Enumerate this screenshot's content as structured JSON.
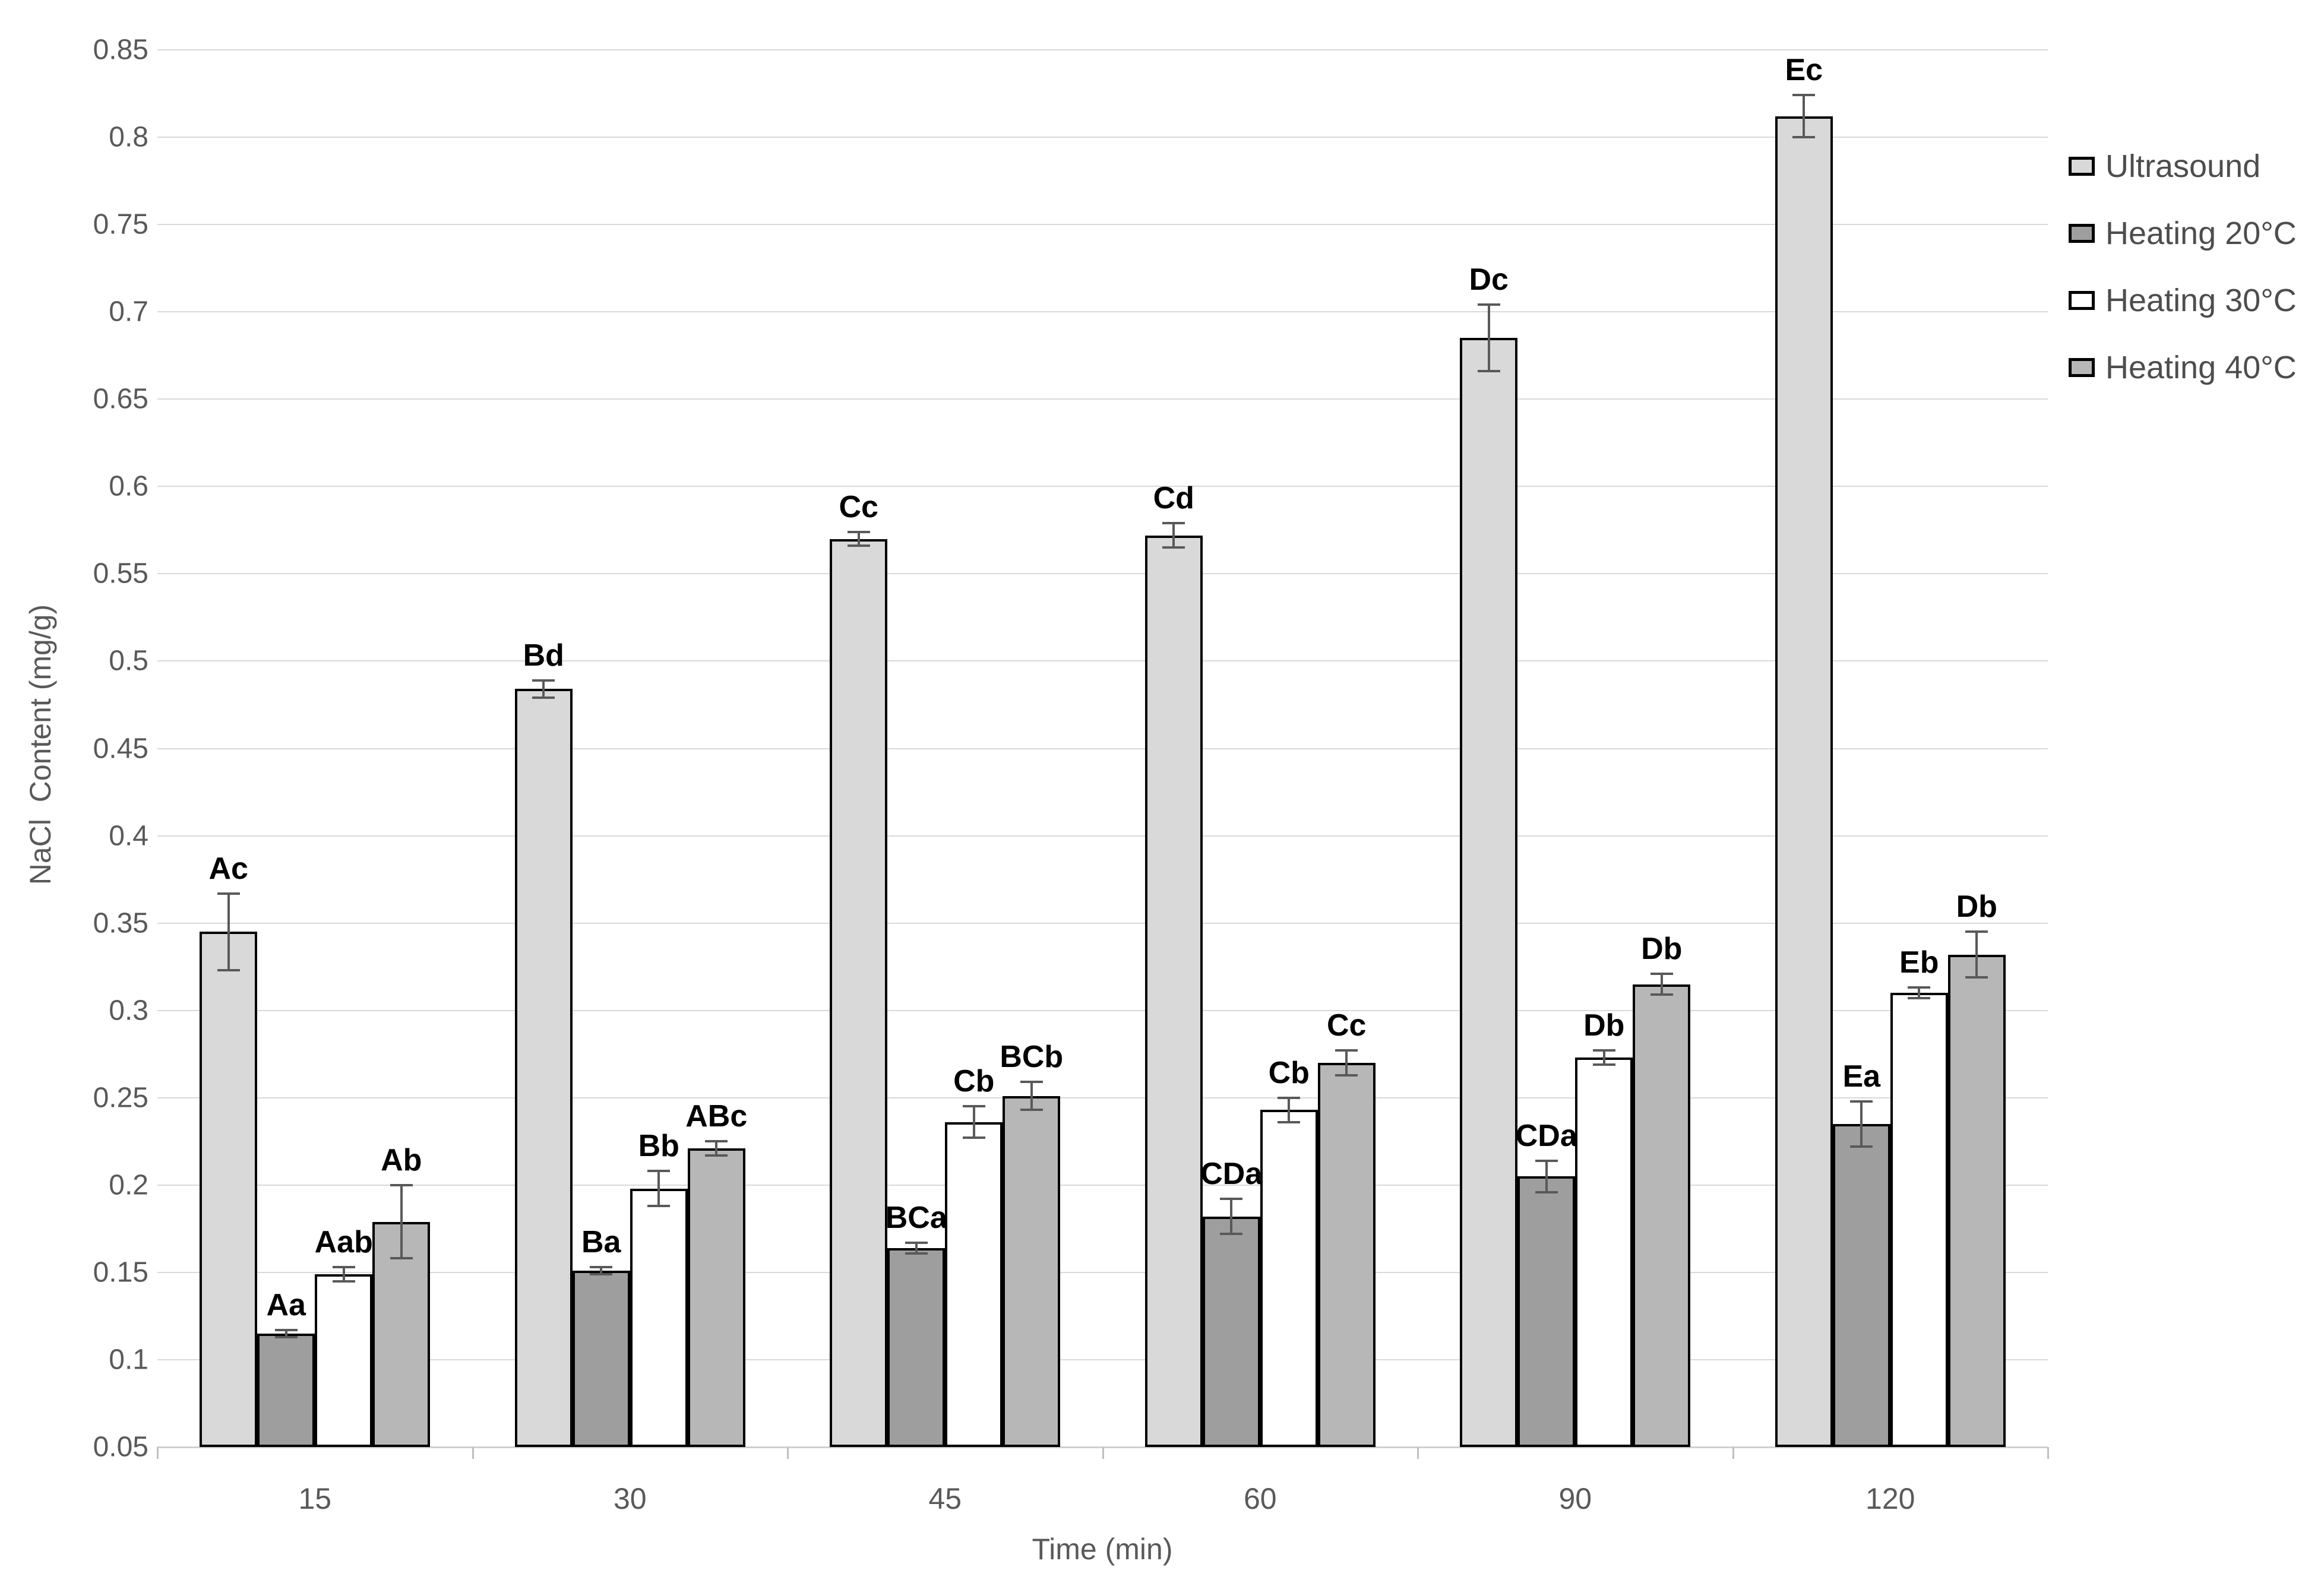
{
  "chart_data": {
    "type": "bar",
    "title": "",
    "xlabel": "Time (min)",
    "ylabel": "NaCl  Content (mg/g)",
    "categories": [
      "15",
      "30",
      "45",
      "60",
      "90",
      "120"
    ],
    "y_axis": {
      "min": 0.05,
      "max": 0.85,
      "step": 0.05,
      "tick_labels": [
        "0.85",
        "0.8",
        "0.75",
        "0.7",
        "0.65",
        "0.6",
        "0.55",
        "0.5",
        "0.45",
        "0.4",
        "0.35",
        "0.3",
        "0.25",
        "0.2",
        "0.15",
        "0.1",
        "0.05"
      ]
    },
    "grid": true,
    "legend_position": "right",
    "series": [
      {
        "name": "Ultrasound",
        "color": "#d9d9d9",
        "values": [
          0.345,
          0.484,
          0.57,
          0.572,
          0.685,
          0.812
        ],
        "errors": [
          0.022,
          0.005,
          0.004,
          0.007,
          0.019,
          0.012
        ],
        "point_labels": [
          "Ac",
          "Bd",
          "Cc",
          "Cd",
          "Dc",
          "Ec"
        ]
      },
      {
        "name": "Heating 20°C",
        "color": "#9e9e9e",
        "values": [
          0.115,
          0.151,
          0.164,
          0.182,
          0.205,
          0.235
        ],
        "errors": [
          0.002,
          0.002,
          0.003,
          0.01,
          0.009,
          0.013
        ],
        "point_labels": [
          "Aa",
          "Ba",
          "BCa",
          "CDa",
          "CDa",
          "Ea"
        ]
      },
      {
        "name": "Heating 30°C",
        "color": "#ffffff",
        "values": [
          0.149,
          0.198,
          0.236,
          0.243,
          0.273,
          0.31
        ],
        "errors": [
          0.004,
          0.01,
          0.009,
          0.007,
          0.004,
          0.003
        ],
        "point_labels": [
          "Aab",
          "Bb",
          "Cb",
          "Cb",
          "Db",
          "Eb"
        ]
      },
      {
        "name": "Heating 40°C",
        "color": "#b7b7b7",
        "values": [
          0.179,
          0.221,
          0.251,
          0.27,
          0.315,
          0.332
        ],
        "errors": [
          0.021,
          0.004,
          0.008,
          0.007,
          0.006,
          0.013
        ],
        "point_labels": [
          "Ab",
          "ABc",
          "BCb",
          "Cc",
          "Db",
          "Db"
        ]
      }
    ]
  }
}
